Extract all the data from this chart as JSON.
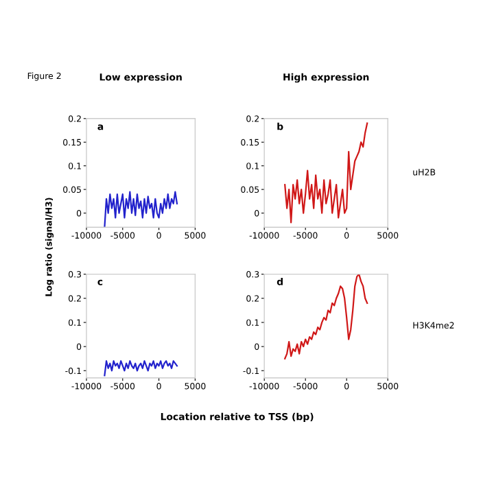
{
  "chart_data": [
    {
      "type": "line",
      "title": "Low expression",
      "ylabel": "Log ratio (signal/H3)",
      "annotations": [
        "a",
        "Figure 2"
      ],
      "xlim": [
        -10000,
        5000
      ],
      "xticks": [
        -10000,
        -5000,
        0,
        5000
      ],
      "ylim": [
        -0.03,
        0.2
      ],
      "yticks": [
        0,
        0.05,
        0.1,
        0.15,
        0.2
      ],
      "grid": false,
      "legend": false,
      "x": [
        -7500,
        -7250,
        -7000,
        -6750,
        -6500,
        -6250,
        -6000,
        -5750,
        -5500,
        -5250,
        -5000,
        -4750,
        -4500,
        -4250,
        -4000,
        -3750,
        -3500,
        -3250,
        -3000,
        -2750,
        -2500,
        -2250,
        -2000,
        -1750,
        -1500,
        -1250,
        -1000,
        -750,
        -500,
        -250,
        0,
        250,
        500,
        750,
        1000,
        1250,
        1500,
        1750,
        2000,
        2250,
        2500
      ],
      "series": [
        {
          "color": "#2222cc",
          "values": [
            -0.03,
            0.03,
            0.0,
            0.04,
            0.01,
            0.03,
            -0.01,
            0.04,
            0.0,
            0.02,
            0.04,
            -0.01,
            0.03,
            0.01,
            0.045,
            0.0,
            0.03,
            -0.005,
            0.04,
            0.01,
            0.025,
            -0.01,
            0.03,
            0.0,
            0.035,
            0.01,
            0.02,
            -0.01,
            0.03,
            0.0,
            -0.01,
            0.02,
            0.0,
            0.03,
            0.01,
            0.04,
            0.01,
            0.03,
            0.02,
            0.045,
            0.02
          ]
        }
      ]
    },
    {
      "type": "line",
      "title": "High expression",
      "annotations": [
        "b",
        "uH2B"
      ],
      "xlim": [
        -10000,
        5000
      ],
      "xticks": [
        -10000,
        -5000,
        0,
        5000
      ],
      "ylim": [
        -0.03,
        0.2
      ],
      "yticks": [
        0,
        0.05,
        0.1,
        0.15,
        0.2
      ],
      "grid": false,
      "legend": false,
      "x": [
        -7500,
        -7250,
        -7000,
        -6750,
        -6500,
        -6250,
        -6000,
        -5750,
        -5500,
        -5250,
        -5000,
        -4750,
        -4500,
        -4250,
        -4000,
        -3750,
        -3500,
        -3250,
        -3000,
        -2750,
        -2500,
        -2250,
        -2000,
        -1750,
        -1500,
        -1250,
        -1000,
        -750,
        -500,
        -250,
        0,
        250,
        500,
        750,
        1000,
        1250,
        1500,
        1750,
        2000,
        2250,
        2500
      ],
      "series": [
        {
          "color": "#d01818",
          "values": [
            0.06,
            0.01,
            0.05,
            -0.02,
            0.06,
            0.03,
            0.07,
            0.02,
            0.05,
            0.0,
            0.04,
            0.09,
            0.03,
            0.06,
            0.01,
            0.08,
            0.03,
            0.05,
            0.0,
            0.07,
            0.02,
            0.04,
            0.07,
            0.0,
            0.03,
            0.06,
            -0.01,
            0.02,
            0.05,
            0.0,
            0.01,
            0.13,
            0.05,
            0.08,
            0.11,
            0.12,
            0.13,
            0.15,
            0.14,
            0.17,
            0.19
          ]
        }
      ]
    },
    {
      "type": "line",
      "xlabel": "Location relative to TSS (bp)",
      "annotations": [
        "c"
      ],
      "xlim": [
        -10000,
        5000
      ],
      "xticks": [
        -10000,
        -5000,
        0,
        5000
      ],
      "ylim": [
        -0.13,
        0.3
      ],
      "yticks": [
        -0.1,
        0,
        0.1,
        0.2,
        0.3
      ],
      "grid": false,
      "legend": false,
      "x": [
        -7500,
        -7250,
        -7000,
        -6750,
        -6500,
        -6250,
        -6000,
        -5750,
        -5500,
        -5250,
        -5000,
        -4750,
        -4500,
        -4250,
        -4000,
        -3750,
        -3500,
        -3250,
        -3000,
        -2750,
        -2500,
        -2250,
        -2000,
        -1750,
        -1500,
        -1250,
        -1000,
        -750,
        -500,
        -250,
        0,
        250,
        500,
        750,
        1000,
        1250,
        1500,
        1750,
        2000,
        2250,
        2500
      ],
      "series": [
        {
          "color": "#2222cc",
          "values": [
            -0.12,
            -0.06,
            -0.09,
            -0.07,
            -0.1,
            -0.06,
            -0.08,
            -0.07,
            -0.09,
            -0.06,
            -0.08,
            -0.1,
            -0.07,
            -0.09,
            -0.06,
            -0.08,
            -0.09,
            -0.07,
            -0.1,
            -0.08,
            -0.07,
            -0.09,
            -0.06,
            -0.08,
            -0.1,
            -0.07,
            -0.08,
            -0.06,
            -0.09,
            -0.07,
            -0.08,
            -0.06,
            -0.09,
            -0.07,
            -0.06,
            -0.08,
            -0.07,
            -0.09,
            -0.06,
            -0.07,
            -0.08
          ]
        }
      ]
    },
    {
      "type": "line",
      "annotations": [
        "d",
        "H3K4me2"
      ],
      "xlim": [
        -10000,
        5000
      ],
      "xticks": [
        -10000,
        -5000,
        0,
        5000
      ],
      "ylim": [
        -0.13,
        0.3
      ],
      "yticks": [
        -0.1,
        0,
        0.1,
        0.2,
        0.3
      ],
      "grid": false,
      "legend": false,
      "x": [
        -7500,
        -7250,
        -7000,
        -6750,
        -6500,
        -6250,
        -6000,
        -5750,
        -5500,
        -5250,
        -5000,
        -4750,
        -4500,
        -4250,
        -4000,
        -3750,
        -3500,
        -3250,
        -3000,
        -2750,
        -2500,
        -2250,
        -2000,
        -1750,
        -1500,
        -1250,
        -1000,
        -750,
        -500,
        -250,
        0,
        250,
        500,
        750,
        1000,
        1250,
        1500,
        1750,
        2000,
        2250,
        2500
      ],
      "series": [
        {
          "color": "#d01818",
          "values": [
            -0.05,
            -0.03,
            0.02,
            -0.04,
            -0.01,
            -0.02,
            0.01,
            -0.03,
            0.02,
            0.0,
            0.03,
            0.01,
            0.04,
            0.03,
            0.06,
            0.05,
            0.08,
            0.07,
            0.1,
            0.12,
            0.11,
            0.15,
            0.14,
            0.18,
            0.17,
            0.2,
            0.22,
            0.25,
            0.24,
            0.2,
            0.12,
            0.03,
            0.07,
            0.15,
            0.25,
            0.29,
            0.3,
            0.27,
            0.25,
            0.2,
            0.18
          ]
        }
      ]
    }
  ]
}
